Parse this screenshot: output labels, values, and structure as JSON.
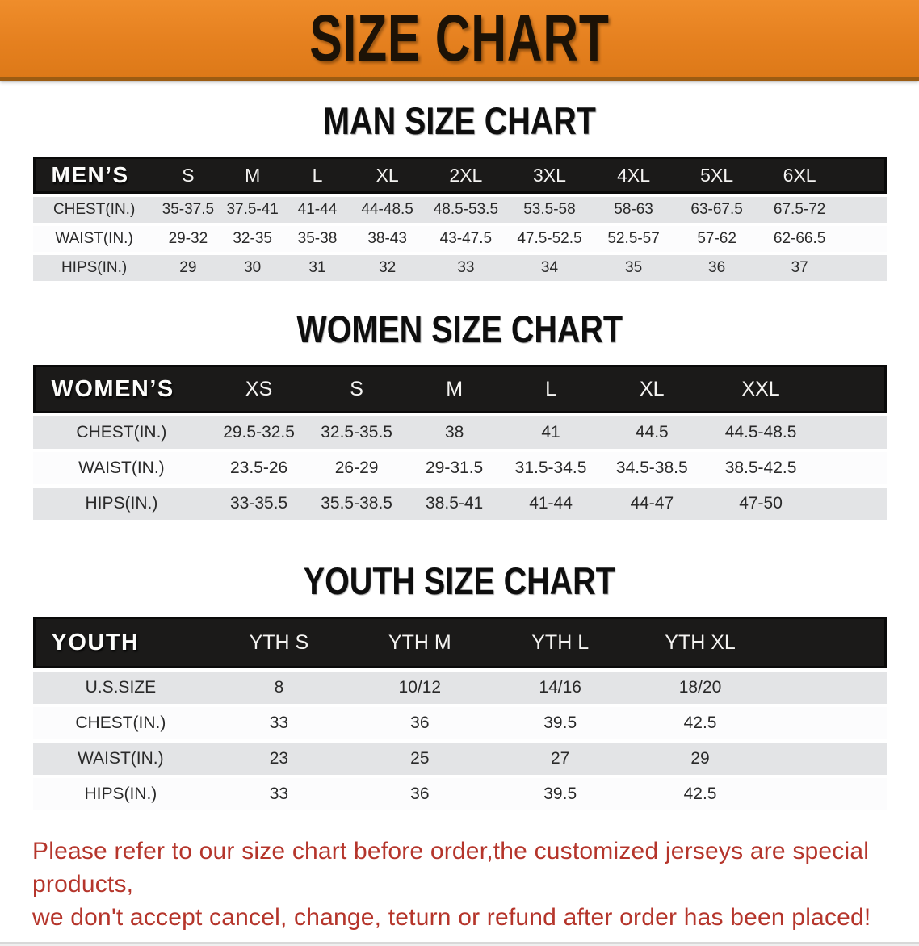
{
  "banner": {
    "title": "SIZE CHART",
    "bg_color": "#E5801F",
    "text_color": "#1C1206"
  },
  "colors": {
    "table_header_black": "#1B1A19",
    "row_gray": "#E3E4E6",
    "row_white": "#FCFCFD",
    "notice_red": "#B5352B"
  },
  "sections": [
    {
      "css": "men",
      "heading": "MAN SIZE CHART",
      "header_label": "MEN’S",
      "columns": [
        "S",
        "M",
        "L",
        "XL",
        "2XL",
        "3XL",
        "4XL",
        "5XL",
        "6XL"
      ],
      "rows": [
        {
          "label": "CHEST(IN.)",
          "values": [
            "35-37.5",
            "37.5-41",
            "41-44",
            "44-48.5",
            "48.5-53.5",
            "53.5-58",
            "58-63",
            "63-67.5",
            "67.5-72"
          ]
        },
        {
          "label": "WAIST(IN.)",
          "values": [
            "29-32",
            "32-35",
            "35-38",
            "38-43",
            "43-47.5",
            "47.5-52.5",
            "52.5-57",
            "57-62",
            "62-66.5"
          ]
        },
        {
          "label": "HIPS(IN.)",
          "values": [
            "29",
            "30",
            "31",
            "32",
            "33",
            "34",
            "35",
            "36",
            "37"
          ]
        }
      ]
    },
    {
      "css": "women",
      "heading": "WOMEN SIZE CHART",
      "header_label": "WOMEN’S",
      "columns": [
        "XS",
        "S",
        "M",
        "L",
        "XL",
        "XXL"
      ],
      "rows": [
        {
          "label": "CHEST(IN.)",
          "values": [
            "29.5-32.5",
            "32.5-35.5",
            "38",
            "41",
            "44.5",
            "44.5-48.5"
          ]
        },
        {
          "label": "WAIST(IN.)",
          "values": [
            "23.5-26",
            "26-29",
            "29-31.5",
            "31.5-34.5",
            "34.5-38.5",
            "38.5-42.5"
          ]
        },
        {
          "label": "HIPS(IN.)",
          "values": [
            "33-35.5",
            "35.5-38.5",
            "38.5-41",
            "41-44",
            "44-47",
            "47-50"
          ]
        }
      ]
    },
    {
      "css": "youth",
      "heading": "YOUTH SIZE CHART",
      "header_label": "YOUTH",
      "columns": [
        "YTH S",
        "YTH M",
        "YTH L",
        "YTH XL"
      ],
      "rows": [
        {
          "label": "U.S.SIZE",
          "values": [
            "8",
            "10/12",
            "14/16",
            "18/20"
          ]
        },
        {
          "label": "CHEST(IN.)",
          "values": [
            "33",
            "36",
            "39.5",
            "42.5"
          ]
        },
        {
          "label": "WAIST(IN.)",
          "values": [
            "23",
            "25",
            "27",
            "29"
          ]
        },
        {
          "label": "HIPS(IN.)",
          "values": [
            "33",
            "36",
            "39.5",
            "42.5"
          ]
        }
      ]
    }
  ],
  "footer": {
    "line1": "Please refer to our size chart before order,the customized jerseys are special products,",
    "line2": "we don't accept cancel, change, teturn or refund after order has been placed!"
  }
}
